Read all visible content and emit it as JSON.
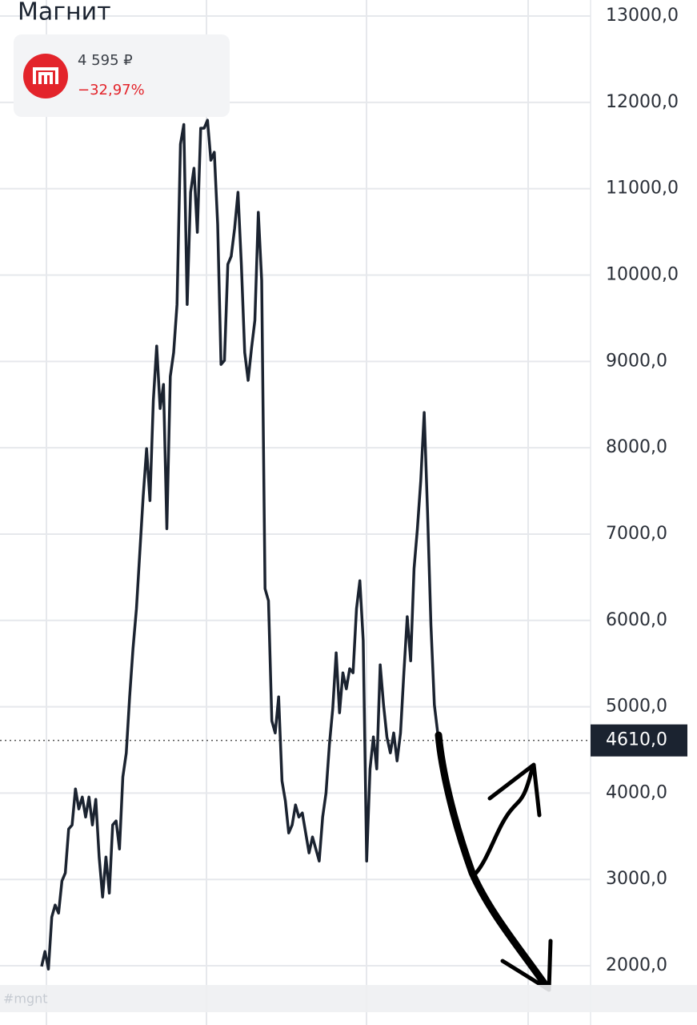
{
  "chart_data": {
    "type": "line",
    "title": "Магнит",
    "price_card": {
      "price": "4 595 ₽",
      "change": "−32,97%"
    },
    "watermark": "#mgnt",
    "series": [
      {
        "name": "Магнит",
        "color": "#1b2330",
        "values": [
          1992,
          2165,
          1961,
          2564,
          2703,
          2610,
          2982,
          3074,
          3584,
          3631,
          4048,
          3816,
          3955,
          3723,
          3955,
          3631,
          3928,
          3260,
          2796,
          3260,
          2842,
          3631,
          3677,
          3353,
          4187,
          4466,
          5115,
          5672,
          6136,
          6785,
          7434,
          7990,
          7388,
          8547,
          9178,
          8455,
          8733,
          7063,
          8826,
          9104,
          9660,
          11516,
          11744,
          9660,
          10959,
          11237,
          10495,
          11701,
          11701,
          11794,
          11330,
          11423,
          10588,
          8965,
          9011,
          10124,
          10217,
          10541,
          10959,
          10124,
          9104,
          8780,
          9151,
          9475,
          10727,
          9939,
          6367,
          6228,
          4837,
          4697,
          5115,
          4141,
          3909,
          3538,
          3631,
          3863,
          3723,
          3770,
          3538,
          3307,
          3492,
          3353,
          3213,
          3723,
          4002,
          4558,
          4976,
          5625,
          4930,
          5393,
          5208,
          5440,
          5393,
          6136,
          6460,
          5764,
          3213,
          4280,
          4651,
          4280,
          5486,
          5022,
          4651,
          4466,
          4697,
          4373,
          4697,
          5393,
          6043,
          5532,
          6599,
          7063,
          7620,
          8408,
          7249,
          5950,
          5022,
          4697
        ]
      }
    ],
    "last_price": {
      "value": 4610,
      "label": "4610,0"
    },
    "ylim": [
      1314,
      13186
    ],
    "yticks": [
      {
        "value": 2000,
        "label": "2000,0"
      },
      {
        "value": 3000,
        "label": "3000,0"
      },
      {
        "value": 4000,
        "label": "4000,0"
      },
      {
        "value": 5000,
        "label": "5000,0"
      },
      {
        "value": 6000,
        "label": "6000,0"
      },
      {
        "value": 7000,
        "label": "7000,0"
      },
      {
        "value": 8000,
        "label": "8000,0"
      },
      {
        "value": 9000,
        "label": "9000,0"
      },
      {
        "value": 10000,
        "label": "10000,0"
      },
      {
        "value": 11000,
        "label": "11000,0"
      },
      {
        "value": 12000,
        "label": "12000,0"
      },
      {
        "value": 13000,
        "label": "13000,0"
      }
    ],
    "grid": true
  }
}
